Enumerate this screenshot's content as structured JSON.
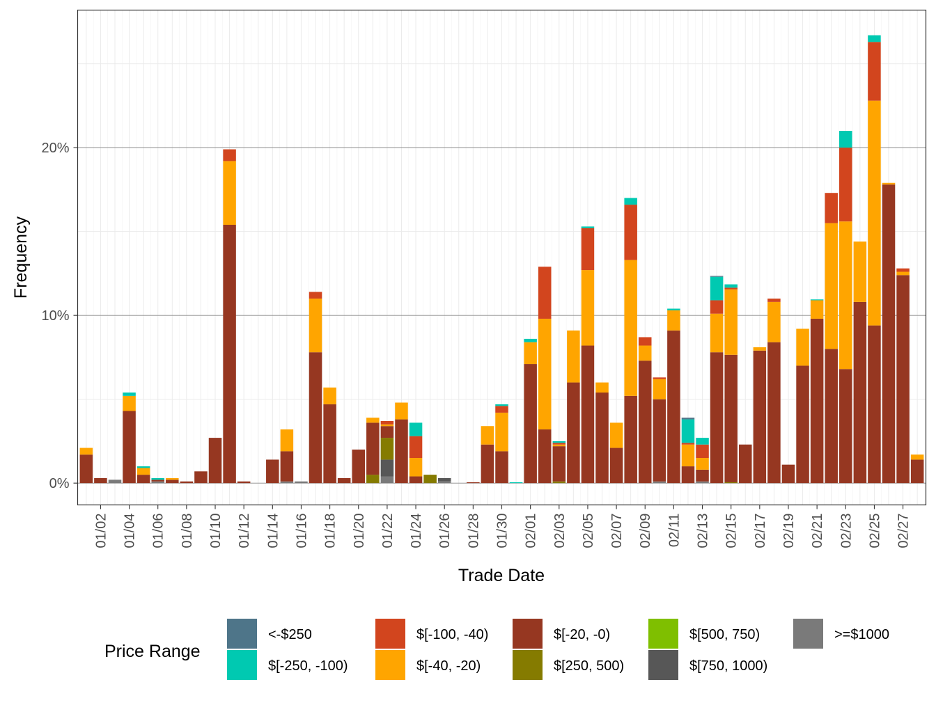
{
  "chart_data": {
    "type": "bar",
    "stacked": true,
    "xlabel": "Trade Date",
    "ylabel": "Frequency",
    "ylim": [
      -1.3,
      28.2
    ],
    "y_ticks": [
      {
        "value": 0,
        "label": "0%"
      },
      {
        "value": 10,
        "label": "10%"
      },
      {
        "value": 20,
        "label": "20%"
      }
    ],
    "grid": true,
    "legend": {
      "title": "Price Range",
      "position": "bottom",
      "entries": [
        {
          "key": "lt_m250",
          "label": "<-$250",
          "color": "#4e7589"
        },
        {
          "key": "m250_m100",
          "label": "$[-250, -100)",
          "color": "#00c9b1"
        },
        {
          "key": "m100_m40",
          "label": "$[-100, -40)",
          "color": "#d2451e"
        },
        {
          "key": "m40_m20",
          "label": "$[-40, -20)",
          "color": "#ffa500"
        },
        {
          "key": "m20_0",
          "label": "$[-20, -0)",
          "color": "#963721"
        },
        {
          "key": "p250_500",
          "label": "$[250, 500)",
          "color": "#857b00"
        },
        {
          "key": "p500_750",
          "label": "$[500, 750)",
          "color": "#7fbf00"
        },
        {
          "key": "p750_1000",
          "label": "$[750, 1000)",
          "color": "#575757"
        },
        {
          "key": "ge1000",
          "label": ">=$1000",
          "color": "#7a7a7a"
        }
      ]
    },
    "categories": [
      "01/01",
      "01/02",
      "01/03",
      "01/04",
      "01/05",
      "01/06",
      "01/07",
      "01/08",
      "01/09",
      "01/10",
      "01/11",
      "01/12",
      "01/13",
      "01/14",
      "01/15",
      "01/16",
      "01/17",
      "01/18",
      "01/19",
      "01/20",
      "01/21",
      "01/22",
      "01/23",
      "01/24",
      "01/25",
      "01/26",
      "01/27",
      "01/28",
      "01/29",
      "01/30",
      "01/31",
      "02/01",
      "02/02",
      "02/03",
      "02/04",
      "02/05",
      "02/06",
      "02/07",
      "02/08",
      "02/09",
      "02/10",
      "02/11",
      "02/12",
      "02/13",
      "02/14",
      "02/15",
      "02/16",
      "02/17",
      "02/18",
      "02/19",
      "02/20",
      "02/21",
      "02/22",
      "02/23",
      "02/24",
      "02/25",
      "02/26",
      "02/27",
      "02/28"
    ],
    "x_tick_labels": [
      "01/02",
      "01/04",
      "01/06",
      "01/08",
      "01/10",
      "01/12",
      "01/14",
      "01/16",
      "01/18",
      "01/20",
      "01/22",
      "01/24",
      "01/26",
      "01/28",
      "01/30",
      "02/01",
      "02/03",
      "02/05",
      "02/07",
      "02/09",
      "02/11",
      "02/13",
      "02/15",
      "02/17",
      "02/19",
      "02/21",
      "02/23",
      "02/25",
      "02/27"
    ],
    "series": [
      {
        "key": "ge1000",
        "values": [
          0,
          0,
          0.2,
          0,
          0,
          0.1,
          0,
          0,
          0,
          0,
          0,
          0,
          0,
          0,
          0.1,
          0.1,
          0,
          0,
          0,
          0,
          0,
          0.4,
          0,
          0,
          0,
          0.1,
          0,
          0,
          0,
          0,
          0,
          0,
          0,
          0,
          0,
          0,
          0,
          0,
          0,
          0,
          0.1,
          0,
          0,
          0.1,
          0,
          0,
          0,
          0,
          0,
          0,
          0,
          0,
          0,
          0,
          0,
          0,
          0,
          0,
          0
        ]
      },
      {
        "key": "p750_1000",
        "values": [
          0,
          0,
          0,
          0,
          0,
          0,
          0,
          0,
          0,
          0,
          0,
          0,
          0,
          0,
          0,
          0,
          0,
          0,
          0,
          0,
          0,
          1.0,
          0,
          0,
          0,
          0.2,
          0,
          0,
          0,
          0,
          0,
          0,
          0,
          0,
          0,
          0,
          0,
          0,
          0,
          0,
          0,
          0,
          0,
          0,
          0,
          0,
          0,
          0,
          0,
          0,
          0,
          0,
          0,
          0,
          0,
          0,
          0,
          0,
          0
        ]
      },
      {
        "key": "p500_750",
        "values": [
          0,
          0,
          0,
          0,
          0,
          0,
          0,
          0,
          0,
          0,
          0,
          0,
          0,
          0,
          0,
          0,
          0,
          0,
          0,
          0,
          0,
          0,
          0,
          0,
          0,
          0,
          0,
          0,
          0,
          0,
          0,
          0,
          0,
          0,
          0,
          0,
          0,
          0,
          0,
          0,
          0,
          0,
          0,
          0,
          0,
          0,
          0,
          0,
          0,
          0,
          0,
          0,
          0,
          0,
          0,
          0,
          0,
          0,
          0
        ]
      },
      {
        "key": "p250_500",
        "values": [
          0,
          0,
          0,
          0,
          0,
          0,
          0,
          0,
          0,
          0,
          0,
          0,
          0,
          0,
          0,
          0,
          0,
          0,
          0,
          0,
          0.5,
          1.3,
          0,
          0,
          0.5,
          0,
          0,
          0,
          0,
          0,
          0,
          0,
          0,
          0.1,
          0,
          0,
          0,
          0,
          0,
          0,
          0,
          0,
          0,
          0,
          0,
          0.05,
          0,
          0,
          0,
          0,
          0,
          0,
          0,
          0,
          0,
          0,
          0,
          0,
          0
        ]
      },
      {
        "key": "m20_0",
        "values": [
          1.7,
          0.3,
          0,
          4.3,
          0.5,
          0.1,
          0.2,
          0.1,
          0.7,
          2.7,
          15.4,
          0.1,
          0,
          1.4,
          1.8,
          0,
          7.8,
          4.7,
          0.3,
          2.0,
          3.1,
          0.7,
          3.8,
          0.4,
          0,
          0,
          0,
          0.05,
          2.3,
          1.9,
          0,
          7.1,
          3.2,
          2.1,
          6.0,
          8.2,
          5.4,
          2.1,
          5.2,
          7.3,
          4.9,
          9.1,
          1.0,
          0.7,
          7.8,
          7.6,
          2.3,
          7.9,
          8.4,
          1.1,
          7.0,
          9.8,
          8.0,
          6.8,
          10.8,
          9.4,
          17.8,
          12.4,
          1.4
        ]
      },
      {
        "key": "m40_m20",
        "values": [
          0.4,
          0,
          0,
          0.9,
          0.4,
          0,
          0.1,
          0,
          0,
          0,
          3.8,
          0,
          0,
          0,
          1.3,
          0,
          3.2,
          1.0,
          0,
          0,
          0.3,
          0.1,
          1.0,
          1.1,
          0,
          0,
          0,
          0,
          1.1,
          2.3,
          0,
          1.3,
          6.6,
          0.1,
          3.1,
          4.5,
          0.6,
          1.5,
          8.1,
          0.9,
          1.2,
          1.2,
          1.3,
          0.7,
          2.3,
          3.9,
          0,
          0.2,
          2.4,
          0,
          2.2,
          1.1,
          7.5,
          8.8,
          3.6,
          13.4,
          0.1,
          0.2,
          0.3
        ]
      },
      {
        "key": "m100_m40",
        "values": [
          0,
          0,
          0,
          0,
          0,
          0,
          0,
          0,
          0,
          0,
          0.7,
          0,
          0,
          0,
          0,
          0,
          0.4,
          0,
          0,
          0,
          0,
          0.2,
          0,
          1.3,
          0,
          0,
          0,
          0,
          0,
          0.4,
          0,
          0,
          3.1,
          0.1,
          0,
          2.5,
          0,
          0,
          3.3,
          0.5,
          0.1,
          0,
          0.1,
          0.8,
          0.8,
          0.1,
          0,
          0,
          0.2,
          0,
          0,
          0,
          1.8,
          4.4,
          0,
          3.5,
          0,
          0.2,
          0
        ]
      },
      {
        "key": "m250_m100",
        "values": [
          0,
          0,
          0,
          0.2,
          0.1,
          0.1,
          0,
          0,
          0,
          0,
          0,
          0,
          0,
          0,
          0,
          0,
          0,
          0,
          0,
          0,
          0,
          0,
          0,
          0.8,
          0,
          0,
          0,
          0,
          0,
          0.1,
          0.05,
          0.2,
          0,
          0.1,
          0,
          0.1,
          0,
          0,
          0.4,
          0,
          0,
          0.1,
          1.4,
          0.4,
          1.4,
          0.2,
          0,
          0,
          0,
          0,
          0,
          0.05,
          0,
          1.0,
          0,
          0.4,
          0,
          0,
          0
        ]
      },
      {
        "key": "lt_m250",
        "values": [
          0,
          0,
          0,
          0,
          0,
          0,
          0,
          0,
          0,
          0,
          0,
          0,
          0,
          0,
          0,
          0,
          0,
          0,
          0,
          0,
          0,
          0,
          0,
          0,
          0,
          0,
          0,
          0,
          0,
          0,
          0,
          0,
          0,
          0,
          0,
          0,
          0,
          0,
          0,
          0,
          0,
          0,
          0.1,
          0,
          0.05,
          0,
          0,
          0,
          0,
          0,
          0,
          0,
          0,
          0,
          0,
          0,
          0,
          0,
          0
        ]
      }
    ]
  }
}
